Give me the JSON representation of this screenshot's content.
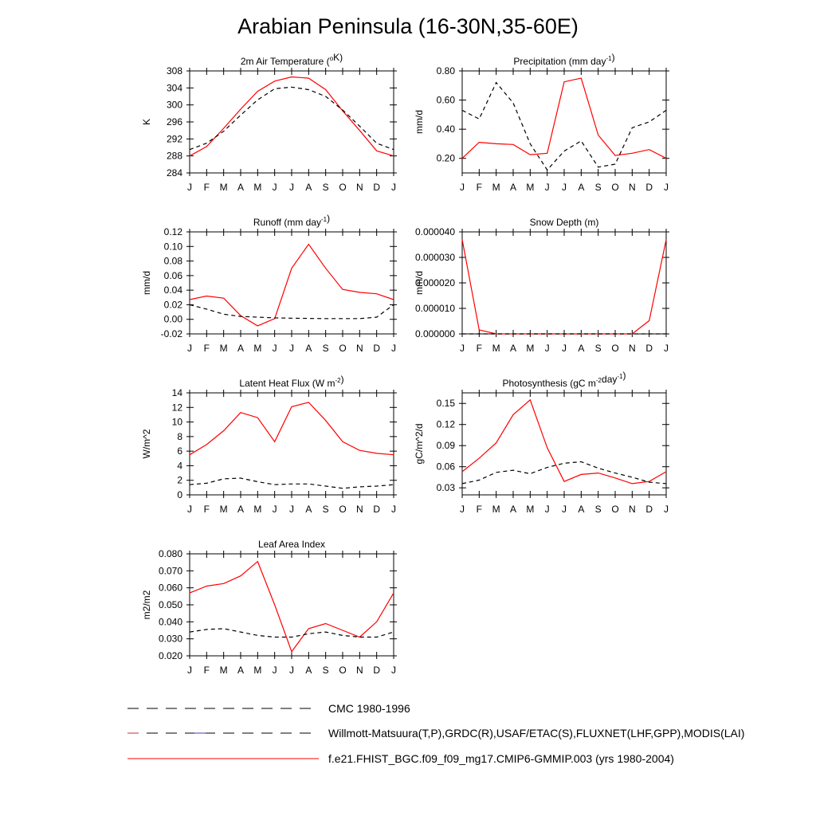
{
  "title": "Arabian Peninsula (16-30N,35-60E)",
  "months": [
    "J",
    "F",
    "M",
    "A",
    "M",
    "J",
    "J",
    "A",
    "S",
    "O",
    "N",
    "D",
    "J"
  ],
  "colors": {
    "model": "#ff0000",
    "obs": "#000000",
    "obs2": "#4040b0"
  },
  "legend": {
    "entries": [
      {
        "label": "CMC 1980-1996",
        "style": "dashed-black"
      },
      {
        "label": "Willmott-Matsuura(T,P),GRDC(R),USAF/ETAC(S),FLUXNET(LHF,GPP),MODIS(LAI)",
        "style": "dashed-mixed"
      },
      {
        "label": "f.e21.FHIST_BGC.f09_f09_mg17.CMIP6-GMMIP.003 (yrs 1980-2004)",
        "style": "solid-red"
      }
    ]
  },
  "chart_data": [
    {
      "type": "line",
      "title_main": "2m Air Temperature (",
      "title_sup": "o",
      "title_tail": "K)",
      "ylabel": "K",
      "ylim": [
        284,
        308
      ],
      "yticks": [
        284,
        288,
        292,
        296,
        300,
        304,
        308
      ],
      "ytick_labels": [
        "284",
        "288",
        "292",
        "296",
        "300",
        "304",
        "308"
      ],
      "series": [
        {
          "name": "model",
          "values": [
            288.0,
            290.2,
            294.5,
            299.0,
            303.2,
            305.6,
            306.6,
            306.3,
            303.6,
            298.6,
            294.0,
            289.2,
            288.0
          ]
        },
        {
          "name": "obs",
          "values": [
            289.5,
            291.0,
            293.8,
            297.6,
            301.2,
            303.8,
            304.2,
            303.6,
            302.0,
            298.8,
            295.0,
            291.0,
            289.5
          ]
        }
      ]
    },
    {
      "type": "line",
      "title_main": "Precipitation (mm day",
      "title_sup": "-1",
      "title_tail": ")",
      "ylabel": "mm/d",
      "ylim": [
        0.1,
        0.8
      ],
      "yticks": [
        0.2,
        0.4,
        0.6,
        0.8
      ],
      "ytick_labels": [
        "0.20",
        "0.40",
        "0.60",
        "0.80"
      ],
      "series": [
        {
          "name": "model",
          "values": [
            0.2,
            0.31,
            0.3,
            0.295,
            0.225,
            0.235,
            0.725,
            0.75,
            0.36,
            0.22,
            0.235,
            0.26,
            0.2
          ]
        },
        {
          "name": "obs",
          "values": [
            0.53,
            0.47,
            0.72,
            0.58,
            0.3,
            0.12,
            0.25,
            0.32,
            0.14,
            0.16,
            0.41,
            0.45,
            0.53
          ]
        }
      ]
    },
    {
      "type": "line",
      "title_main": "Runoff (mm day",
      "title_sup": "-1",
      "title_tail": ")",
      "ylabel": "mm/d",
      "ylim": [
        -0.02,
        0.12
      ],
      "yticks": [
        -0.02,
        0.0,
        0.02,
        0.04,
        0.06,
        0.08,
        0.1,
        0.12
      ],
      "ytick_labels": [
        "-0.02",
        "0.00",
        "0.02",
        "0.04",
        "0.06",
        "0.08",
        "0.10",
        "0.12"
      ],
      "series": [
        {
          "name": "model",
          "values": [
            0.027,
            0.032,
            0.029,
            0.005,
            -0.009,
            0.001,
            0.07,
            0.103,
            0.07,
            0.041,
            0.037,
            0.035,
            0.027
          ]
        },
        {
          "name": "obs",
          "values": [
            0.02,
            0.014,
            0.007,
            0.004,
            0.003,
            0.002,
            0.0015,
            0.0012,
            0.001,
            0.001,
            0.001,
            0.003,
            0.02
          ]
        }
      ]
    },
    {
      "type": "line",
      "title_main": "Snow Depth (m)",
      "title_sup": "",
      "title_tail": "",
      "ylabel": "mm/d",
      "ylim": [
        0.0,
        4e-05
      ],
      "yticks": [
        0.0,
        1e-05,
        2e-05,
        3e-05,
        4e-05
      ],
      "ytick_labels": [
        "0.000000",
        "0.000010",
        "0.000020",
        "0.000030",
        "0.000040"
      ],
      "series": [
        {
          "name": "model",
          "values": [
            3.7e-05,
            1.6e-06,
            0.0,
            0.0,
            0.0,
            0.0,
            0.0,
            0.0,
            0.0,
            0.0,
            0.0,
            5.2e-06,
            3.7e-05
          ]
        },
        {
          "name": "obs",
          "values": [
            0.0,
            0.0,
            0.0,
            0.0,
            0.0,
            0.0,
            0.0,
            0.0,
            0.0,
            0.0,
            0.0,
            0.0,
            0.0
          ]
        }
      ]
    },
    {
      "type": "line",
      "title_main": "Latent Heat Flux (W m",
      "title_sup": "-2",
      "title_tail": ")",
      "ylabel": "W/m^2",
      "ylim": [
        0,
        14
      ],
      "yticks": [
        0,
        2,
        4,
        6,
        8,
        10,
        12,
        14
      ],
      "ytick_labels": [
        "0",
        "2",
        "4",
        "6",
        "8",
        "10",
        "12",
        "14"
      ],
      "series": [
        {
          "name": "model",
          "values": [
            5.5,
            6.9,
            8.8,
            11.3,
            10.6,
            7.3,
            12.1,
            12.7,
            10.2,
            7.3,
            6.1,
            5.7,
            5.5
          ]
        },
        {
          "name": "obs",
          "values": [
            1.4,
            1.6,
            2.2,
            2.3,
            1.8,
            1.4,
            1.5,
            1.5,
            1.2,
            0.9,
            1.1,
            1.2,
            1.4
          ]
        }
      ]
    },
    {
      "type": "line",
      "title_main": "Photosynthesis (gC m",
      "title_sup": "-2",
      "title_tail": "day",
      "title_sup2": "-1",
      "title_tail2": ")",
      "ylabel": "gC/m^2/d",
      "ylim": [
        0.02,
        0.165
      ],
      "yticks": [
        0.03,
        0.06,
        0.09,
        0.12,
        0.15
      ],
      "ytick_labels": [
        "0.03",
        "0.06",
        "0.09",
        "0.12",
        "0.15"
      ],
      "series": [
        {
          "name": "model",
          "values": [
            0.053,
            0.072,
            0.094,
            0.134,
            0.155,
            0.087,
            0.039,
            0.049,
            0.051,
            0.044,
            0.036,
            0.039,
            0.053
          ]
        },
        {
          "name": "obs",
          "values": [
            0.036,
            0.041,
            0.052,
            0.055,
            0.05,
            0.059,
            0.065,
            0.067,
            0.058,
            0.051,
            0.045,
            0.038,
            0.036
          ]
        }
      ]
    },
    {
      "type": "line",
      "title_main": "Leaf Area Index",
      "title_sup": "",
      "title_tail": "",
      "ylabel": "m2/m2",
      "ylim": [
        0.02,
        0.08
      ],
      "yticks": [
        0.02,
        0.03,
        0.04,
        0.05,
        0.06,
        0.07,
        0.08
      ],
      "ytick_labels": [
        "0.020",
        "0.030",
        "0.040",
        "0.050",
        "0.060",
        "0.070",
        "0.080"
      ],
      "series": [
        {
          "name": "model",
          "values": [
            0.057,
            0.061,
            0.0625,
            0.067,
            0.0755,
            0.05,
            0.0225,
            0.036,
            0.039,
            0.035,
            0.031,
            0.04,
            0.057
          ]
        },
        {
          "name": "obs",
          "values": [
            0.034,
            0.0355,
            0.036,
            0.034,
            0.032,
            0.031,
            0.031,
            0.033,
            0.034,
            0.032,
            0.031,
            0.031,
            0.034
          ]
        }
      ]
    }
  ]
}
